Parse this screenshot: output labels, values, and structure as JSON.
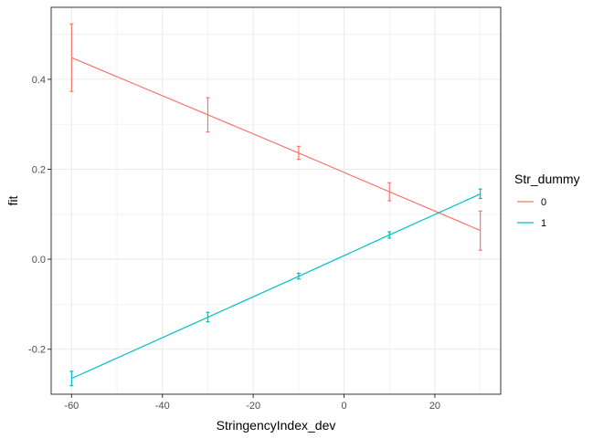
{
  "chart_data": {
    "type": "line",
    "title": "",
    "xlabel": "StringencyIndex_dev",
    "ylabel": "fit",
    "xlim": [
      -64.5,
      34.5
    ],
    "ylim": [
      -0.3,
      0.56
    ],
    "x_ticks": [
      -60,
      -40,
      -20,
      0,
      20
    ],
    "y_ticks": [
      -0.2,
      0.0,
      0.2,
      0.4
    ],
    "x_tick_labels": [
      "-60",
      "-40",
      "-20",
      "0",
      "20"
    ],
    "y_tick_labels": [
      "-0.2",
      "0.0",
      "0.2",
      "0.4"
    ],
    "grid": true,
    "legend": {
      "title": "Str_dummy",
      "position": "right",
      "entries": [
        "0",
        "1"
      ]
    },
    "series": [
      {
        "name": "0",
        "color": "#F8766D",
        "points": [
          {
            "x": -60,
            "y": 0.448,
            "lower": 0.373,
            "upper": 0.523
          },
          {
            "x": -30,
            "y": 0.321,
            "lower": 0.283,
            "upper": 0.359
          },
          {
            "x": -10,
            "y": 0.236,
            "lower": 0.222,
            "upper": 0.251
          },
          {
            "x": 10,
            "y": 0.15,
            "lower": 0.13,
            "upper": 0.17
          },
          {
            "x": 30,
            "y": 0.064,
            "lower": 0.02,
            "upper": 0.107
          }
        ]
      },
      {
        "name": "1",
        "color": "#00BFC4",
        "points": [
          {
            "x": -60,
            "y": -0.265,
            "lower": -0.281,
            "upper": -0.249
          },
          {
            "x": -30,
            "y": -0.129,
            "lower": -0.139,
            "upper": -0.118
          },
          {
            "x": -10,
            "y": -0.038,
            "lower": -0.044,
            "upper": -0.031
          },
          {
            "x": 10,
            "y": 0.054,
            "lower": 0.047,
            "upper": 0.061
          },
          {
            "x": 30,
            "y": 0.145,
            "lower": 0.135,
            "upper": 0.156
          }
        ]
      }
    ]
  }
}
